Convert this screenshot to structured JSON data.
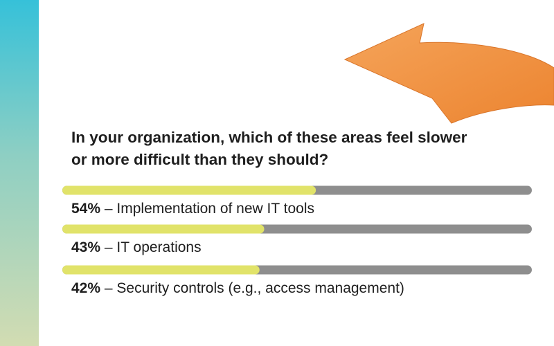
{
  "chart_data": {
    "type": "progress",
    "title": "In your organization, which of these areas feel slower or more difficult than they should?",
    "categories": [
      "Implementation of new IT tools",
      "IT operations",
      "Security controls (e.g., access management)"
    ],
    "values": [
      54,
      43,
      42
    ],
    "value_labels": [
      "54%",
      "43%",
      "42%"
    ],
    "separator": "–",
    "xlim": [
      0,
      100
    ],
    "color": "#e1e36a",
    "track_color": "#8e8e8e"
  }
}
